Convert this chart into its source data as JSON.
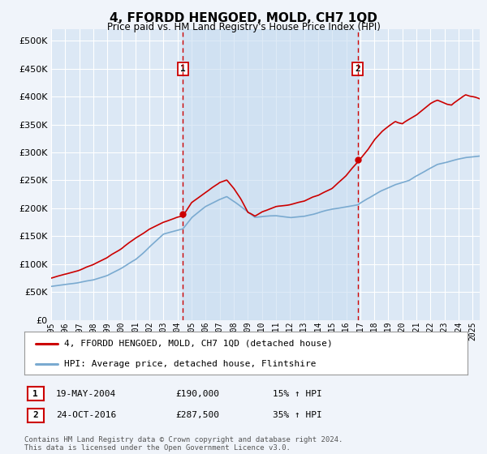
{
  "title": "4, FFORDD HENGOED, MOLD, CH7 1QD",
  "subtitle": "Price paid vs. HM Land Registry's House Price Index (HPI)",
  "background_color": "#f0f4fa",
  "plot_bg_color": "#dce8f5",
  "grid_color": "#c8d8e8",
  "legend_label_red": "4, FFORDD HENGOED, MOLD, CH7 1QD (detached house)",
  "legend_label_blue": "HPI: Average price, detached house, Flintshire",
  "sale1_date": "19-MAY-2004",
  "sale1_price": 190000,
  "sale1_pct": "15%",
  "sale2_date": "24-OCT-2016",
  "sale2_price": 287500,
  "sale2_pct": "35%",
  "footer": "Contains HM Land Registry data © Crown copyright and database right 2024.\nThis data is licensed under the Open Government Licence v3.0.",
  "xmin": 1995.0,
  "xmax": 2025.5,
  "ymin": 0,
  "ymax": 520000,
  "yticks": [
    0,
    50000,
    100000,
    150000,
    200000,
    250000,
    300000,
    350000,
    400000,
    450000,
    500000
  ],
  "red_color": "#cc0000",
  "blue_color": "#7aaad0",
  "fill_color": "#c8ddf0",
  "vline_color": "#cc0000",
  "sale1_x": 2004.38,
  "sale2_x": 2016.81
}
